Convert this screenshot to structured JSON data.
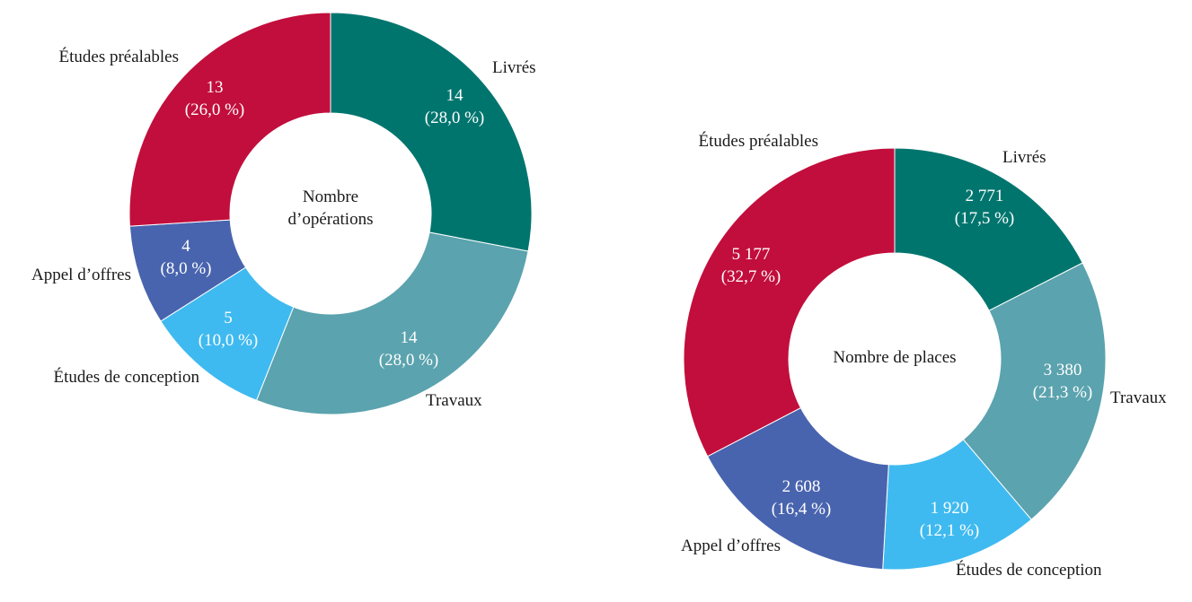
{
  "chart_data": [
    {
      "type": "pie",
      "center_label": [
        "Nombre",
        "d’opérations"
      ],
      "categories": [
        "Livrés",
        "Travaux",
        "Études de conception",
        "Appel d’offres",
        "Études préalables"
      ],
      "values": [
        14,
        14,
        5,
        4,
        13
      ],
      "value_labels": [
        "14",
        "14",
        "5",
        "4",
        "13"
      ],
      "percent_labels": [
        "(28,0 %)",
        "(28,0 %)",
        "(10,0 %)",
        "(8,0 %)",
        "(26,0 %)"
      ],
      "colors": [
        "#00756e",
        "#5ba3ae",
        "#3fbaf0",
        "#4964ae",
        "#c20e3c"
      ]
    },
    {
      "type": "pie",
      "center_label": [
        "Nombre de places"
      ],
      "categories": [
        "Livrés",
        "Travaux",
        "Études de conception",
        "Appel d’offres",
        "Études préalables"
      ],
      "values": [
        2771,
        3380,
        1920,
        2608,
        5177
      ],
      "value_labels": [
        "2 771",
        "3 380",
        "1 920",
        "2 608",
        "5 177"
      ],
      "percent_labels": [
        "(17,5 %)",
        "(21,3 %)",
        "(12,1 %)",
        "(16,4 %)",
        "(32,7 %)"
      ],
      "colors": [
        "#00756e",
        "#5ba3ae",
        "#3fbaf0",
        "#4964ae",
        "#c20e3c"
      ]
    }
  ]
}
